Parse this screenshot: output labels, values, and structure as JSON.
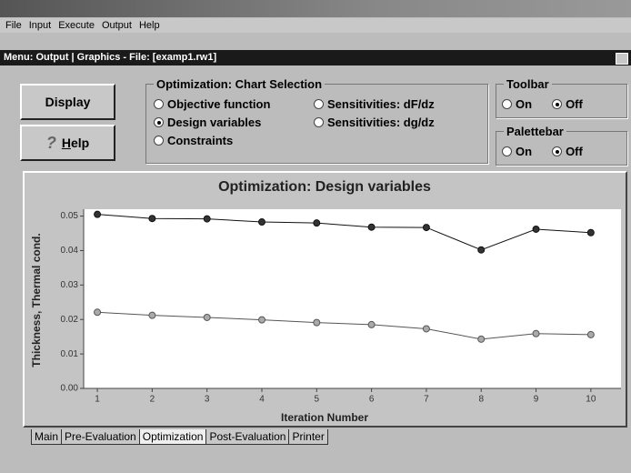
{
  "menu": [
    "File",
    "Input",
    "Execute",
    "Output",
    "Help"
  ],
  "subtitle_bar": "Menu: Output | Graphics  -  File: [examp1.rw1]",
  "buttons": [
    {
      "label": "Display"
    },
    {
      "icon": "?",
      "label": "Help"
    }
  ],
  "chart_selection": {
    "title": "Optimization: Chart Selection",
    "options": [
      "Objective function",
      "Sensitivities: dF/dz",
      "Design variables",
      "Sensitivities: dg/dz",
      "Constraints"
    ],
    "selected": 2
  },
  "toolbar": {
    "title": "Toolbar",
    "options": [
      "On",
      "Off"
    ],
    "selected": 1
  },
  "palettebar": {
    "title": "Palettebar",
    "options": [
      "On",
      "Off"
    ],
    "selected": 1
  },
  "tabs": {
    "items": [
      "Main",
      "Pre-Evaluation",
      "Optimization",
      "Post-Evaluation",
      "Printer"
    ],
    "active": 2
  },
  "chart_data": {
    "type": "line",
    "title": "Optimization: Design variables",
    "x_label": "Iteration Number",
    "y_label": "Thickness, Thermal cond.",
    "x": [
      1,
      2,
      3,
      4,
      5,
      6,
      7,
      8,
      9,
      10
    ],
    "series": [
      {
        "color": "#111111",
        "marker_fill": "#333333",
        "values": [
          0.0505,
          0.0493,
          0.0492,
          0.0483,
          0.048,
          0.0468,
          0.0467,
          0.0402,
          0.0462,
          0.0452
        ]
      },
      {
        "color": "#555555",
        "marker_fill": "#aaaaaa",
        "values": [
          0.0221,
          0.0212,
          0.0206,
          0.0199,
          0.0191,
          0.0185,
          0.0173,
          0.0143,
          0.0159,
          0.0156
        ]
      }
    ],
    "xlim": [
      0.75,
      10.55
    ],
    "ylim": [
      0,
      0.052
    ],
    "xticks": [
      1,
      2,
      3,
      4,
      5,
      6,
      7,
      8,
      9,
      10
    ],
    "yticks": [
      {
        "value": 0,
        "label": "0.00"
      },
      {
        "value": 0.01,
        "label": "0.01"
      },
      {
        "value": 0.02,
        "label": "0.02"
      },
      {
        "value": 0.03,
        "label": "0.03"
      },
      {
        "value": 0.04,
        "label": "0.04"
      },
      {
        "value": 0.05,
        "label": "0.05"
      }
    ]
  }
}
